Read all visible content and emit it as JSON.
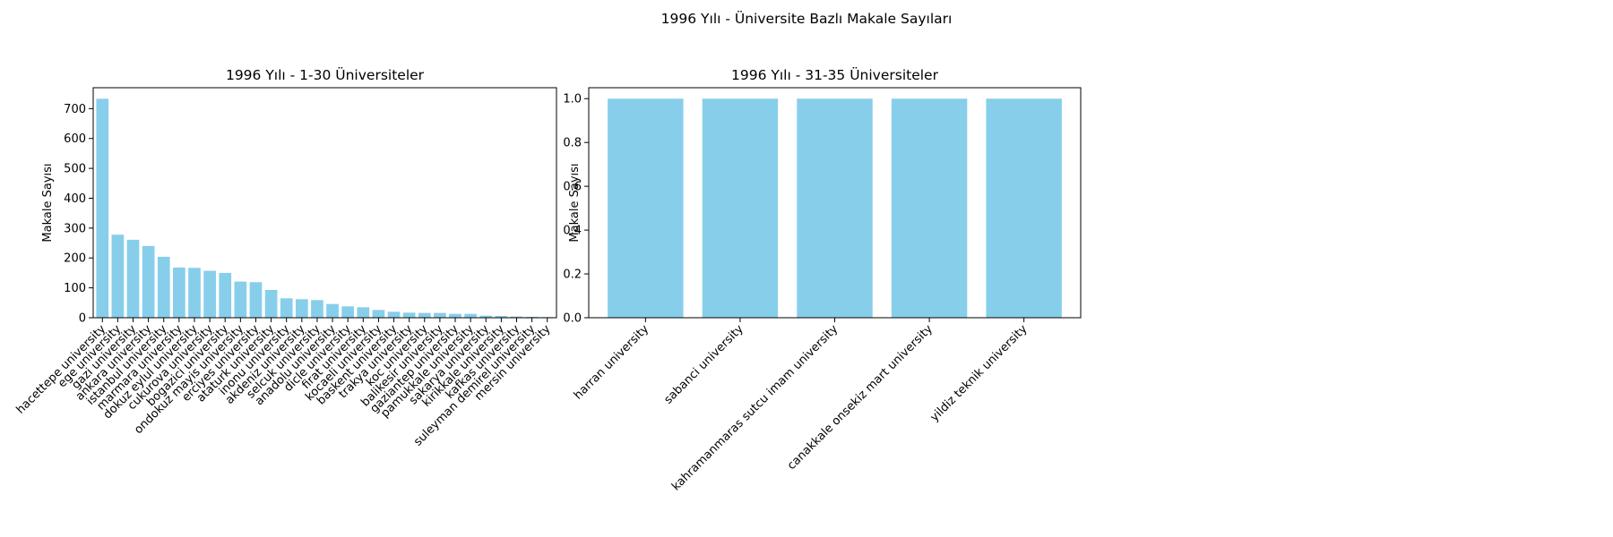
{
  "figure_title": "1996 Yılı - Üniversite Bazlı Makale Sayıları",
  "colors": {
    "bar": "#87CEEB",
    "axis": "#000000",
    "background": "#ffffff"
  },
  "chart_data": [
    {
      "type": "bar",
      "title": "1996 Yılı - 1-30 Üniversiteler",
      "xlabel": "",
      "ylabel": "Makale Sayısı",
      "ylim": [
        0,
        770
      ],
      "yticks": [
        0,
        100,
        200,
        300,
        400,
        500,
        600,
        700
      ],
      "grid": false,
      "categories": [
        "hacettepe university",
        "ege university",
        "gazi university",
        "ankara university",
        "istanbul university",
        "marmara university",
        "dokuz eylul university",
        "cukurova university",
        "bogazici university",
        "ondokuz mayis university",
        "erciyes university",
        "ataturk university",
        "inonu university",
        "akdeniz university",
        "selcuk university",
        "anadolu university",
        "dicle university",
        "firat university",
        "kocaeli university",
        "baskent university",
        "trakya university",
        "koc university",
        "balikesir university",
        "gaziantep university",
        "pamukkale university",
        "sakarya university",
        "kirikkale university",
        "kafkas university",
        "suleyman demirel university",
        "mersin university"
      ],
      "values": [
        733,
        278,
        261,
        240,
        204,
        168,
        167,
        157,
        150,
        121,
        119,
        93,
        65,
        62,
        59,
        46,
        38,
        35,
        26,
        20,
        17,
        16,
        16,
        13,
        13,
        7,
        6,
        4,
        3,
        2
      ]
    },
    {
      "type": "bar",
      "title": "1996 Yılı - 31-35 Üniversiteler",
      "xlabel": "",
      "ylabel": "Makale Sayısı",
      "ylim": [
        0,
        1.05
      ],
      "yticks": [
        "0.0",
        "0.2",
        "0.4",
        "0.6",
        "0.8",
        "1.0"
      ],
      "grid": false,
      "categories": [
        "harran university",
        "sabanci university",
        "kahramanmaras sutcu imam university",
        "canakkale onsekiz mart university",
        "yildiz teknik university"
      ],
      "values": [
        1,
        1,
        1,
        1,
        1
      ]
    }
  ]
}
